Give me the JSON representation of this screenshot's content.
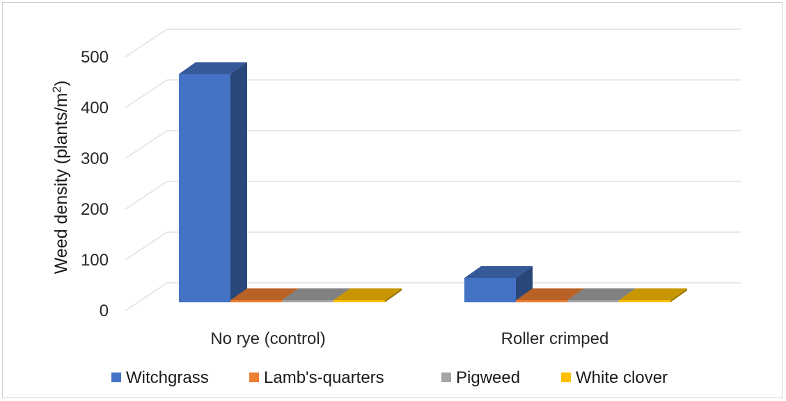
{
  "chart_data": {
    "type": "bar",
    "title": "",
    "xlabel": "",
    "ylabel": "Weed density (plants/m²)",
    "ylabel_main": "Weed density (plants/m",
    "ylabel_sup": "2",
    "ylabel_end": ")",
    "ylim": [
      0,
      500
    ],
    "yticks": [
      0,
      100,
      200,
      300,
      400,
      500
    ],
    "yticklabels": [
      "0",
      "100",
      "200",
      "300",
      "400",
      "500"
    ],
    "grid": true,
    "legend_position": "bottom",
    "categories": [
      "No rye (control)",
      "Roller crimped"
    ],
    "series": [
      {
        "name": "Witchgrass",
        "values": [
          450,
          48
        ],
        "color": "#4472C4"
      },
      {
        "name": "Lamb's-quarters",
        "values": [
          0,
          0
        ],
        "color": "#ED7D31"
      },
      {
        "name": "Pigweed",
        "values": [
          0,
          0
        ],
        "color": "#A5A5A5"
      },
      {
        "name": "White clover",
        "values": [
          0,
          0
        ],
        "color": "#FFC000"
      }
    ]
  }
}
